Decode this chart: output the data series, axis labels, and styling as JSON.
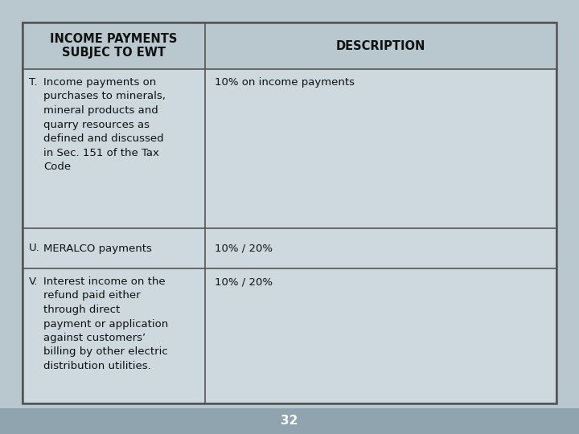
{
  "bg_color": "#b8c8ce",
  "table_bg": "#cdd9de",
  "header_bg": "#b8c8ce",
  "border_color": "#555555",
  "text_color": "#111111",
  "footer_bg": "#8fa4ae",
  "footer_text": "32",
  "col1_header": "INCOME PAYMENTS\nSUBJEC TO EWT",
  "col2_header": "DESCRIPTION",
  "rows": [
    {
      "col1_letter": "T.",
      "col1_text": "Income payments on\npurchases to minerals,\nmineral products and\nquarry resources as\ndefined and discussed\nin Sec. 151 of the Tax\nCode",
      "col2_text": "10% on income payments"
    },
    {
      "col1_letter": "U.",
      "col1_text": "MERALCO payments",
      "col2_text": "10% / 20%"
    },
    {
      "col1_letter": "V.",
      "col1_text": "Interest income on the\nrefund paid either\nthrough direct\npayment or application\nagainst customers’\nbilling by other electric\ndistribution utilities.",
      "col2_text": "10% / 20%"
    }
  ],
  "figsize": [
    7.2,
    5.4
  ],
  "dpi": 100
}
